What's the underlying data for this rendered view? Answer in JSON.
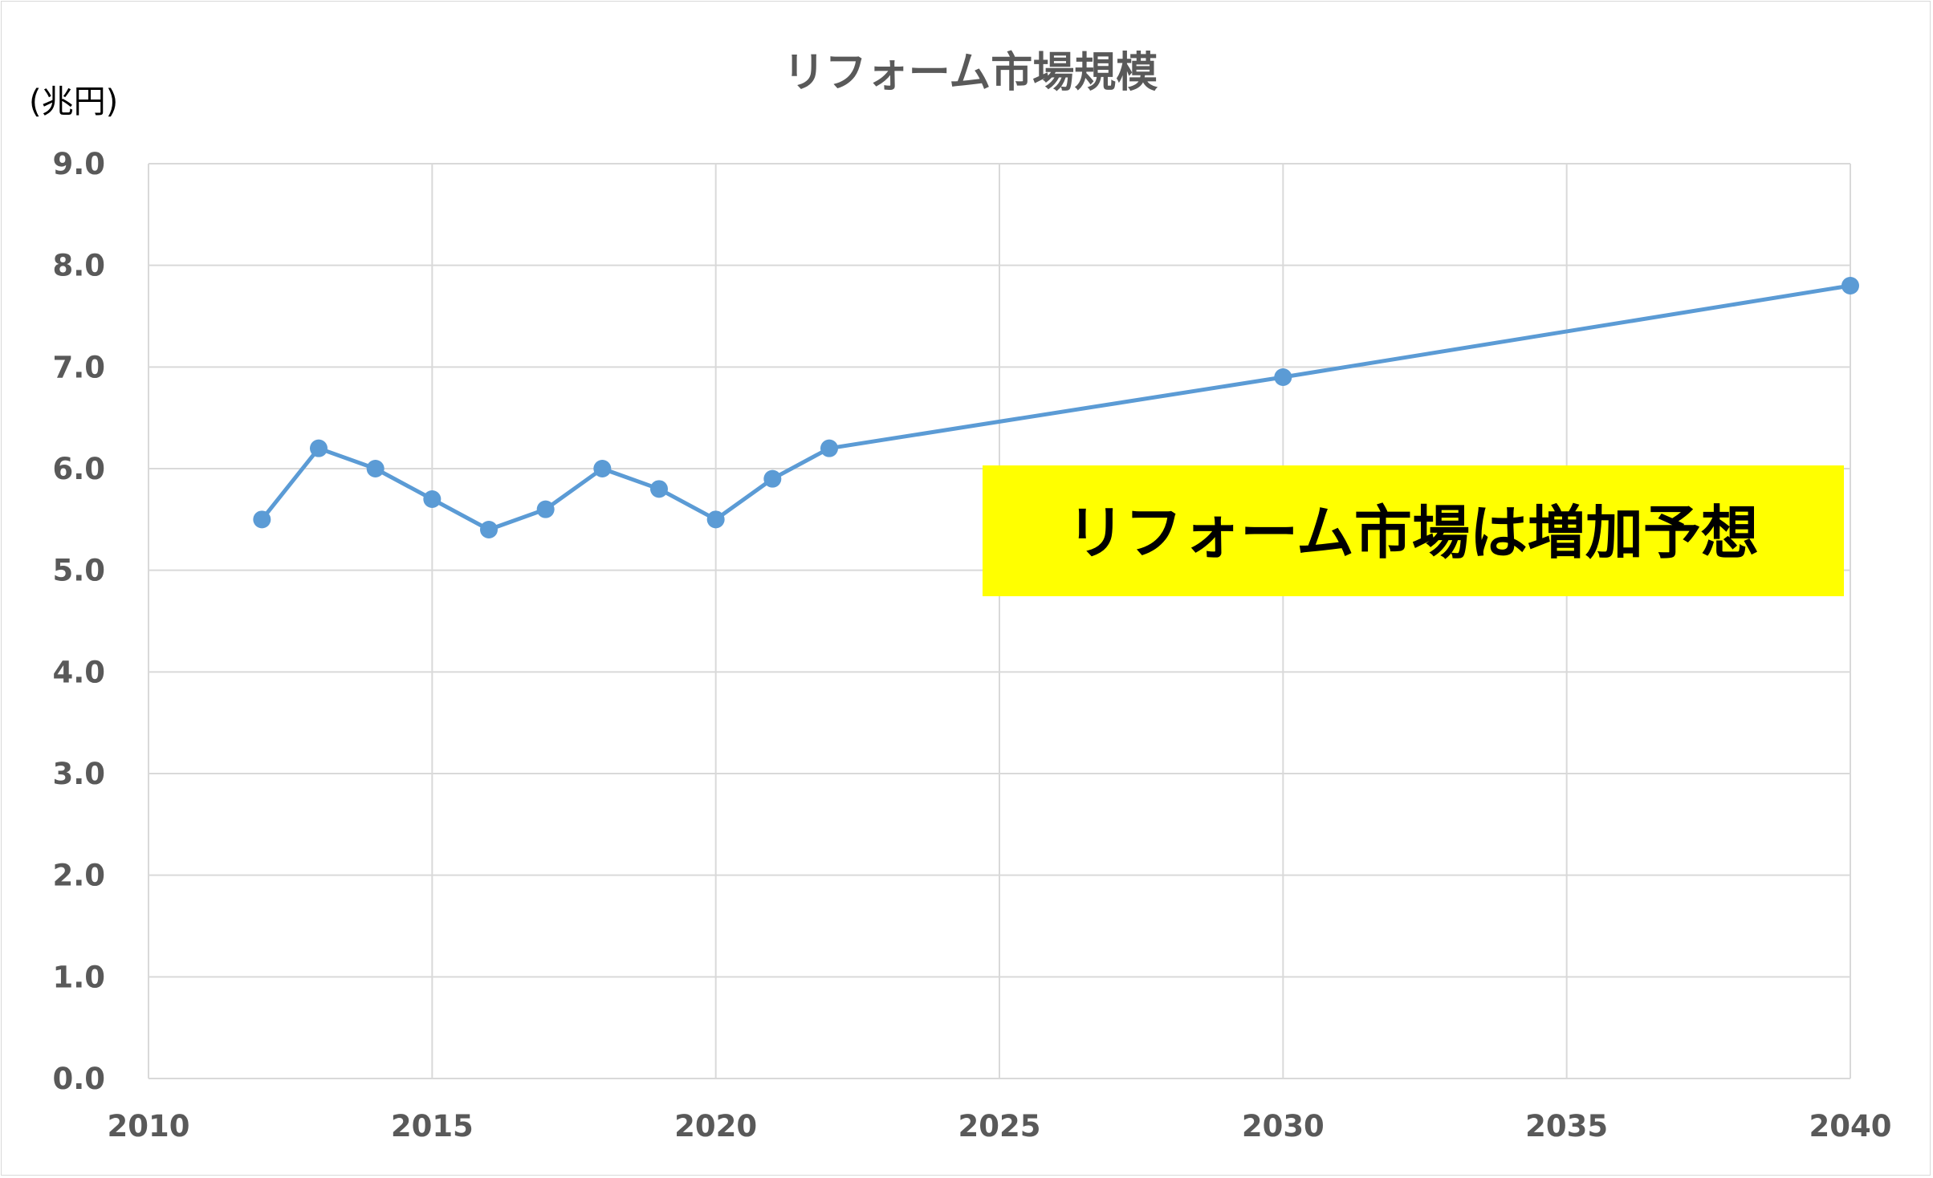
{
  "chart_data": {
    "type": "line",
    "title": "リフォーム市場規模",
    "ylabel": "(兆円)",
    "xlabel": "",
    "xlim": [
      2010,
      2040
    ],
    "ylim": [
      0,
      9
    ],
    "grid": true,
    "legend": "none",
    "x_ticks": [
      "2010",
      "2015",
      "2020",
      "2025",
      "2030",
      "2035",
      "2040"
    ],
    "y_ticks": [
      "0.0",
      "1.0",
      "2.0",
      "3.0",
      "4.0",
      "5.0",
      "6.0",
      "7.0",
      "8.0",
      "9.0"
    ],
    "series": [
      {
        "color": "#5b9bd5",
        "points": [
          {
            "x": 2012,
            "y": 5.5
          },
          {
            "x": 2013,
            "y": 6.2
          },
          {
            "x": 2014,
            "y": 6.0
          },
          {
            "x": 2015,
            "y": 5.7
          },
          {
            "x": 2016,
            "y": 5.4
          },
          {
            "x": 2017,
            "y": 5.6
          },
          {
            "x": 2018,
            "y": 6.0
          },
          {
            "x": 2019,
            "y": 5.8
          },
          {
            "x": 2020,
            "y": 5.5
          },
          {
            "x": 2021,
            "y": 5.9
          },
          {
            "x": 2022,
            "y": 6.2
          },
          {
            "x": 2030,
            "y": 6.9
          },
          {
            "x": 2040,
            "y": 7.8
          }
        ]
      }
    ],
    "annotation": {
      "text": "リフォーム市場は増加予想",
      "background": "#ffff00"
    }
  }
}
